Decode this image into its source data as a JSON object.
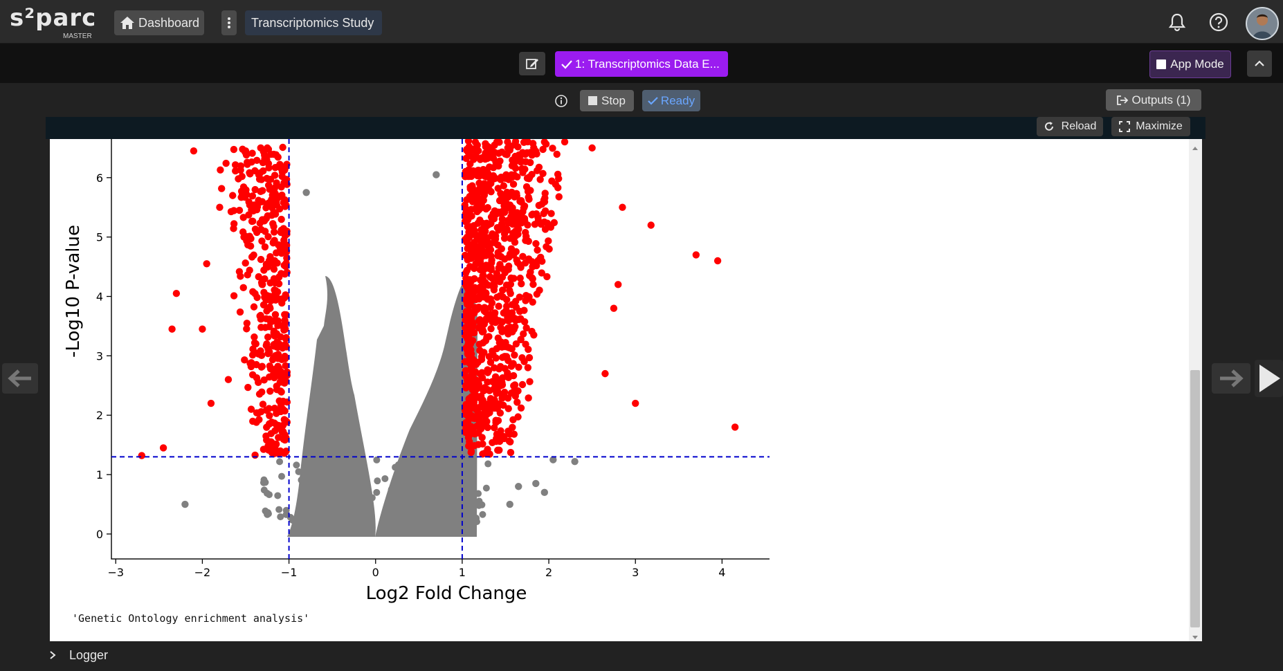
{
  "brand": {
    "name": "s²parc",
    "sub": "MASTER"
  },
  "topnav": {
    "dashboard_label": "Dashboard",
    "study_name": "Transcriptomics Study"
  },
  "nodebar": {
    "node_label": "1: Transcriptomics Data E...",
    "app_mode_label": "App Mode"
  },
  "toolbar": {
    "stop_label": "Stop",
    "ready_label": "Ready",
    "outputs_label": "Outputs (1)",
    "reload_label": "Reload",
    "maximize_label": "Maximize"
  },
  "output_text": "'Genetic Ontology enrichment analysis'",
  "logger_label": "Logger",
  "colors": {
    "accent_purple": "#9b1cf0",
    "significant": "#ff0000",
    "nonsignificant": "#808080",
    "threshold_line": "#0000cc"
  },
  "chart_data": {
    "type": "scatter",
    "title": "",
    "xlabel": "Log2 Fold Change",
    "ylabel": "-Log10 P-value",
    "xlim": [
      -3.05,
      4.7
    ],
    "ylim": [
      -0.42,
      6.65
    ],
    "xticks": [
      -3,
      -2,
      -1,
      0,
      1,
      2,
      3,
      4
    ],
    "yticks": [
      0,
      1,
      2,
      3,
      4,
      5,
      6
    ],
    "threshold_lines": {
      "x": [
        -1,
        1
      ],
      "y": 1.3
    },
    "outlier_points": [
      {
        "x": -2.7,
        "y": 1.32,
        "sig": true
      },
      {
        "x": -2.45,
        "y": 1.45,
        "sig": true
      },
      {
        "x": -2.35,
        "y": 3.45,
        "sig": true
      },
      {
        "x": -2.3,
        "y": 4.05,
        "sig": true
      },
      {
        "x": -2.1,
        "y": 6.45,
        "sig": true
      },
      {
        "x": -2.0,
        "y": 3.45,
        "sig": true
      },
      {
        "x": -1.95,
        "y": 4.55,
        "sig": true
      },
      {
        "x": -1.9,
        "y": 2.2,
        "sig": true
      },
      {
        "x": -1.8,
        "y": 5.5,
        "sig": true
      },
      {
        "x": -1.7,
        "y": 2.6,
        "sig": true
      },
      {
        "x": -1.5,
        "y": 6.45,
        "sig": true
      },
      {
        "x": -1.25,
        "y": 6.5,
        "sig": true
      },
      {
        "x": 1.4,
        "y": 6.6,
        "sig": true
      },
      {
        "x": 1.95,
        "y": 6.6,
        "sig": true
      },
      {
        "x": 2.5,
        "y": 6.5,
        "sig": true
      },
      {
        "x": 2.85,
        "y": 5.5,
        "sig": true
      },
      {
        "x": 2.8,
        "y": 4.2,
        "sig": true
      },
      {
        "x": 2.75,
        "y": 3.8,
        "sig": true
      },
      {
        "x": 2.65,
        "y": 2.7,
        "sig": true
      },
      {
        "x": 3.18,
        "y": 5.2,
        "sig": true
      },
      {
        "x": 3.0,
        "y": 2.2,
        "sig": true
      },
      {
        "x": 3.7,
        "y": 4.7,
        "sig": true
      },
      {
        "x": 3.95,
        "y": 4.6,
        "sig": true
      },
      {
        "x": 4.15,
        "y": 1.8,
        "sig": true
      },
      {
        "x": -2.2,
        "y": 0.5,
        "sig": false
      },
      {
        "x": -1.25,
        "y": 0.33,
        "sig": false
      },
      {
        "x": 1.55,
        "y": 0.5,
        "sig": false
      },
      {
        "x": 1.65,
        "y": 0.8,
        "sig": false
      },
      {
        "x": 1.85,
        "y": 0.85,
        "sig": false
      },
      {
        "x": 1.95,
        "y": 0.7,
        "sig": false
      },
      {
        "x": 2.05,
        "y": 1.25,
        "sig": false
      },
      {
        "x": 2.3,
        "y": 1.22,
        "sig": false
      },
      {
        "x": -0.8,
        "y": 5.75,
        "sig": false
      },
      {
        "x": 0.7,
        "y": 6.05,
        "sig": false
      }
    ]
  }
}
